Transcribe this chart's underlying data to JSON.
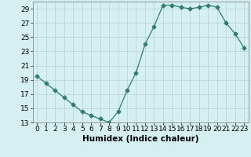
{
  "x": [
    0,
    1,
    2,
    3,
    4,
    5,
    6,
    7,
    8,
    9,
    10,
    11,
    12,
    13,
    14,
    15,
    16,
    17,
    18,
    19,
    20,
    21,
    22,
    23
  ],
  "y": [
    19.5,
    18.5,
    17.5,
    16.5,
    15.5,
    14.5,
    14.0,
    13.5,
    13.0,
    14.5,
    17.5,
    20.0,
    24.0,
    26.5,
    29.5,
    29.5,
    29.2,
    29.0,
    29.2,
    29.5,
    29.2,
    27.0,
    25.5,
    23.5
  ],
  "line_color": "#2e7d6e",
  "marker": "D",
  "marker_size": 2.5,
  "bg_color": "#d6f0f0",
  "grid_color": "#b8d8d8",
  "xlabel": "Humidex (Indice chaleur)",
  "xlim": [
    -0.5,
    23.5
  ],
  "ylim": [
    13,
    30
  ],
  "yticks": [
    13,
    15,
    17,
    19,
    21,
    23,
    25,
    27,
    29
  ],
  "xticks": [
    0,
    1,
    2,
    3,
    4,
    5,
    6,
    7,
    8,
    9,
    10,
    11,
    12,
    13,
    14,
    15,
    16,
    17,
    18,
    19,
    20,
    21,
    22,
    23
  ],
  "tick_fontsize": 6.5,
  "label_fontsize": 7.5
}
